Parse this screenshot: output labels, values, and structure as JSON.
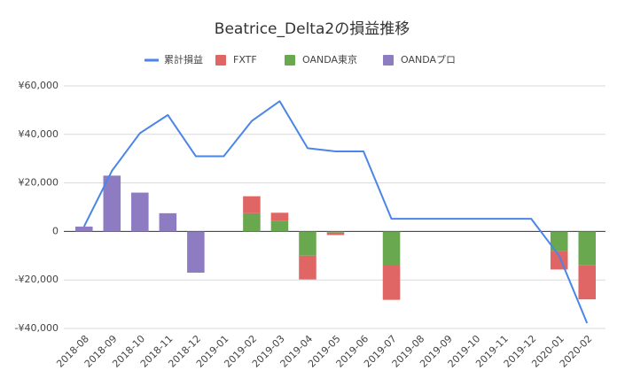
{
  "chart_data": {
    "type": "combo",
    "title": "Beatrice_Delta2の損益推移",
    "categories": [
      "2018-08",
      "2018-09",
      "2018-10",
      "2018-11",
      "2018-12",
      "2019-01",
      "2019-02",
      "2019-03",
      "2019-04",
      "2019-05",
      "2019-06",
      "2019-07",
      "2019-08",
      "2019-09",
      "2019-10",
      "2019-11",
      "2019-12",
      "2020-01",
      "2020-02"
    ],
    "series": [
      {
        "name": "累計損益",
        "type": "line",
        "color": "#4a86e8",
        "values": [
          2000,
          25000,
          40500,
          48000,
          31000,
          31000,
          45500,
          53700,
          34300,
          33000,
          33000,
          5200,
          5200,
          5200,
          5200,
          5200,
          5200,
          -10000,
          -37800
        ]
      },
      {
        "name": "FXTF",
        "type": "bar",
        "color": "#e06666",
        "values": [
          0,
          0,
          0,
          0,
          0,
          0,
          7000,
          3300,
          -9800,
          -1000,
          0,
          -14300,
          0,
          0,
          0,
          0,
          0,
          -7700,
          -14000
        ]
      },
      {
        "name": "OANDA東京",
        "type": "bar",
        "color": "#6aa84f",
        "values": [
          0,
          0,
          0,
          0,
          0,
          0,
          7500,
          4400,
          -10000,
          -500,
          0,
          -13900,
          0,
          0,
          0,
          0,
          0,
          -8000,
          -14000
        ]
      },
      {
        "name": "OANDAプロ",
        "type": "bar",
        "color": "#8e7cc3",
        "values": [
          2000,
          23000,
          16000,
          7500,
          -17000,
          0,
          0,
          0,
          0,
          0,
          0,
          0,
          0,
          0,
          0,
          0,
          0,
          0,
          0
        ]
      }
    ],
    "ylim": [
      -40000,
      60000
    ],
    "yticks": [
      {
        "value": -40000,
        "label": "-¥40,000"
      },
      {
        "value": -20000,
        "label": "-¥20,000"
      },
      0,
      {
        "value": 20000,
        "label": "¥20,000"
      },
      {
        "value": 40000,
        "label": "¥40,000"
      },
      {
        "value": 60000,
        "label": "¥60,000"
      }
    ],
    "grid": true,
    "legend": "top"
  }
}
